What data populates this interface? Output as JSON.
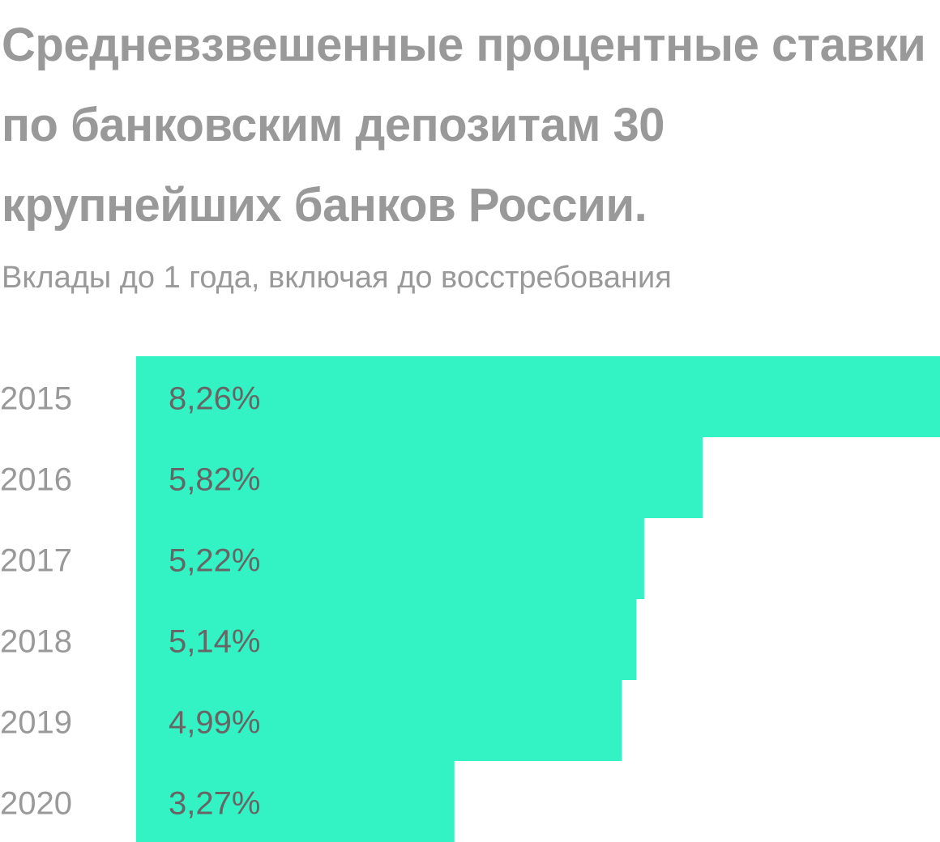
{
  "chart_data": {
    "type": "bar",
    "orientation": "horizontal",
    "title": "Средневзвешенные процентные ставки по банковским депозитам 30 крупнейших банков России.",
    "subtitle": "Вклады до 1 года, включая до восстребования",
    "categories": [
      "2015",
      "2016",
      "2017",
      "2018",
      "2019",
      "2020"
    ],
    "values": [
      8.26,
      5.82,
      5.22,
      5.14,
      4.99,
      3.27
    ],
    "value_labels": [
      "8,26%",
      "5,82%",
      "5,22%",
      "5,14%",
      "4,99%",
      "3,27%"
    ],
    "color": "#33f2c4"
  }
}
